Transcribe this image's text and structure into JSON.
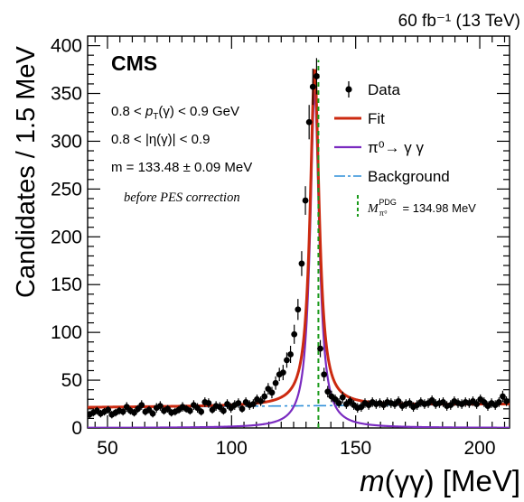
{
  "chart_data": {
    "type": "scatter",
    "header_right": "60 fb⁻¹ (13 TeV)",
    "experiment_label": "CMS",
    "xlabel": "m(γγ) [MeV]",
    "ylabel": "Candidates / 1.5 MeV",
    "xlim": [
      42,
      212
    ],
    "ylim": [
      0,
      410
    ],
    "xticks": [
      50,
      100,
      150,
      200
    ],
    "yticks": [
      0,
      50,
      100,
      150,
      200,
      250,
      300,
      350,
      400
    ],
    "annotations": [
      "0.8 < p_T(γ) < 0.9 GeV",
      "0.8 < |η(γ)| < 0.9",
      "m = 133.48 ± 0.09 MeV",
      "before PES correction"
    ],
    "legend": {
      "placement": "right",
      "entries": [
        {
          "label": "Data",
          "style": "marker",
          "color": "#000000"
        },
        {
          "label": "Fit",
          "style": "line",
          "color": "#cc2a10"
        },
        {
          "label": "π⁰→ γ γ",
          "style": "line",
          "color": "#7a2bc0"
        },
        {
          "label": "Background",
          "style": "dashed",
          "color": "#2f8fd8"
        },
        {
          "label": "M_π⁰^PDG = 134.98 MeV",
          "style": "vertical-dashed",
          "color": "#1a9a1a"
        }
      ]
    },
    "peak_mean": 133.48,
    "peak_mean_error": 0.09,
    "pdg_mass": 134.98,
    "data": {
      "x": [
        42.75,
        44.25,
        45.75,
        47.25,
        48.75,
        50.25,
        51.75,
        53.25,
        54.75,
        56.25,
        57.75,
        59.25,
        60.75,
        62.25,
        63.75,
        65.25,
        66.75,
        68.25,
        69.75,
        71.25,
        72.75,
        74.25,
        75.75,
        77.25,
        78.75,
        80.25,
        81.75,
        83.25,
        84.75,
        86.25,
        87.75,
        89.25,
        90.75,
        92.25,
        93.75,
        95.25,
        96.75,
        98.25,
        99.75,
        101.25,
        102.75,
        104.25,
        105.75,
        107.25,
        108.75,
        110.25,
        111.75,
        113.25,
        114.75,
        116.25,
        117.75,
        119.25,
        120.75,
        122.25,
        123.75,
        125.25,
        126.75,
        128.25,
        129.75,
        131.25,
        132.75,
        134.25,
        135.75,
        137.25,
        138.75,
        140.25,
        141.75,
        143.25,
        144.75,
        146.25,
        147.75,
        149.25,
        150.75,
        152.25,
        153.75,
        155.25,
        156.75,
        158.25,
        159.75,
        161.25,
        162.75,
        164.25,
        165.75,
        167.25,
        168.75,
        170.25,
        171.75,
        173.25,
        174.75,
        176.25,
        177.75,
        179.25,
        180.75,
        182.25,
        183.75,
        185.25,
        186.75,
        188.25,
        189.75,
        191.25,
        192.75,
        194.25,
        195.75,
        197.25,
        198.75,
        200.25,
        201.75,
        203.25,
        204.75,
        206.25,
        207.75,
        209.25,
        210.75
      ],
      "y": [
        14,
        16,
        18,
        15,
        17,
        19,
        14,
        16,
        18,
        17,
        22,
        18,
        16,
        20,
        24,
        17,
        19,
        15,
        21,
        23,
        18,
        20,
        16,
        17,
        19,
        22,
        20,
        18,
        24,
        21,
        17,
        27,
        26,
        19,
        23,
        22,
        18,
        25,
        21,
        24,
        26,
        20,
        27,
        24,
        25,
        30,
        28,
        33,
        41,
        37,
        47,
        56,
        58,
        71,
        77,
        98,
        124,
        172,
        238,
        320,
        357,
        368,
        83,
        56,
        38,
        33,
        30,
        26,
        32,
        25,
        28,
        24,
        21,
        22,
        26,
        24,
        27,
        25,
        26,
        24,
        27,
        26,
        25,
        28,
        23,
        25,
        26,
        22,
        24,
        27,
        25,
        26,
        29,
        25,
        26,
        27,
        23,
        24,
        28,
        26,
        25,
        27,
        26,
        28,
        25,
        30,
        27,
        23,
        26,
        24,
        27,
        33,
        28
      ],
      "yerr": [
        4,
        4,
        4,
        4,
        4,
        4,
        4,
        4,
        4,
        4,
        5,
        4,
        4,
        4,
        5,
        4,
        4,
        4,
        5,
        5,
        4,
        4,
        4,
        4,
        4,
        5,
        4,
        4,
        5,
        5,
        4,
        5,
        5,
        4,
        5,
        5,
        4,
        5,
        5,
        5,
        5,
        4,
        5,
        5,
        5,
        5,
        5,
        6,
        6,
        6,
        7,
        7,
        8,
        8,
        9,
        10,
        11,
        13,
        15,
        18,
        19,
        19,
        9,
        7,
        6,
        6,
        5,
        5,
        6,
        5,
        5,
        5,
        5,
        5,
        5,
        5,
        5,
        5,
        5,
        5,
        5,
        5,
        5,
        5,
        5,
        5,
        5,
        5,
        5,
        5,
        5,
        5,
        5,
        5,
        5,
        5,
        5,
        5,
        5,
        5,
        5,
        5,
        5,
        5,
        5,
        5,
        5,
        5,
        5,
        5,
        5,
        6,
        5
      ]
    }
  }
}
